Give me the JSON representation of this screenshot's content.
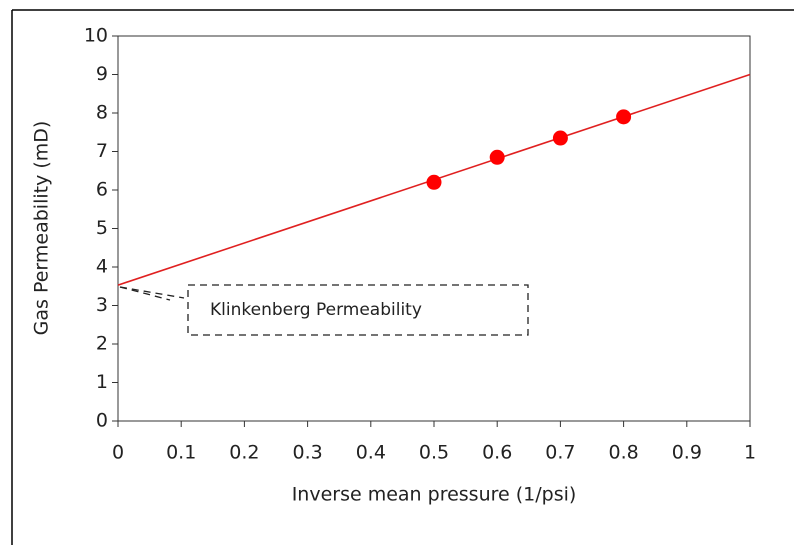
{
  "chart_data": {
    "type": "scatter",
    "x_label": "Inverse  mean  pressure  (1/psi)",
    "y_label": "Gas Permeability  (mD)",
    "annotation": "Klinkenberg Permeability",
    "x": [
      0.5,
      0.6,
      0.7,
      0.8
    ],
    "values": [
      6.2,
      6.85,
      7.35,
      7.9
    ],
    "color": "#ff0000",
    "trendline": {
      "x": [
        0,
        1
      ],
      "values": [
        3.53,
        9.0
      ],
      "color": "#e02020"
    },
    "xlim": [
      0,
      1
    ],
    "ylim": [
      0,
      10
    ],
    "xticks": [
      0,
      0.1,
      0.2,
      0.3,
      0.4,
      0.5,
      0.6,
      0.7,
      0.8,
      0.9,
      1
    ],
    "yticks": [
      0,
      1,
      2,
      3,
      4,
      5,
      6,
      7,
      8,
      9,
      10
    ],
    "grid": false
  }
}
